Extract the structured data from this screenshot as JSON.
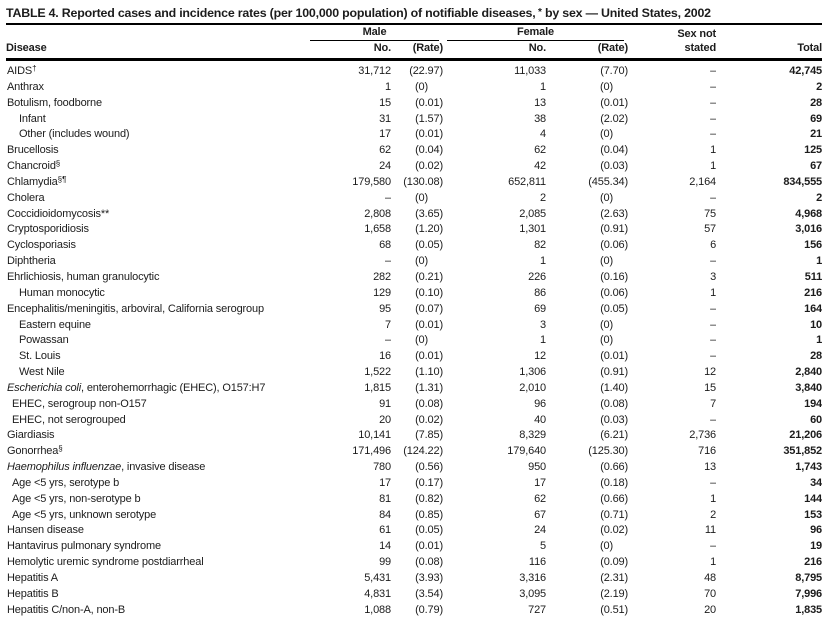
{
  "table": {
    "title": {
      "pre": "TABLE 4. Reported cases and incidence rates (per 100,000 population) of notifiable diseases,",
      "sup": " *",
      "post": " by sex — United States, 2002"
    },
    "header": {
      "disease": "Disease",
      "male": "Male",
      "female": "Female",
      "no": "No.",
      "rate": "(Rate)",
      "sex_not_line1": "Sex not",
      "sex_not_line2": "stated",
      "total": "Total"
    },
    "rows": [
      {
        "name": "AIDS",
        "sup": "†",
        "indent": 0,
        "cells": [
          "31,712",
          "(22.97)",
          "11,033",
          "(7.70)",
          "–",
          "42,745"
        ]
      },
      {
        "name": "Anthrax",
        "indent": 0,
        "cells": [
          "1",
          "(0)",
          "1",
          "(0)",
          "–",
          "2"
        ]
      },
      {
        "name": "Botulism, foodborne",
        "indent": 0,
        "cells": [
          "15",
          "(0.01)",
          "13",
          "(0.01)",
          "–",
          "28"
        ]
      },
      {
        "name": "Infant",
        "indent": 2,
        "cells": [
          "31",
          "(1.57)",
          "38",
          "(2.02)",
          "–",
          "69"
        ]
      },
      {
        "name": "Other (includes wound)",
        "indent": 2,
        "cells": [
          "17",
          "(0.01)",
          "4",
          "(0)",
          "–",
          "21"
        ]
      },
      {
        "name": "Brucellosis",
        "indent": 0,
        "cells": [
          "62",
          "(0.04)",
          "62",
          "(0.04)",
          "1",
          "125"
        ]
      },
      {
        "name": "Chancroid",
        "sup": "§",
        "indent": 0,
        "cells": [
          "24",
          "(0.02)",
          "42",
          "(0.03)",
          "1",
          "67"
        ]
      },
      {
        "name": "Chlamydia",
        "sup": "§¶",
        "indent": 0,
        "cells": [
          "179,580",
          "(130.08)",
          "652,811",
          "(455.34)",
          "2,164",
          "834,555"
        ]
      },
      {
        "name": "Cholera",
        "indent": 0,
        "cells": [
          "–",
          "(0)",
          "2",
          "(0)",
          "–",
          "2"
        ]
      },
      {
        "name": "Coccidioidomycosis**",
        "indent": 0,
        "cells": [
          "2,808",
          "(3.65)",
          "2,085",
          "(2.63)",
          "75",
          "4,968"
        ]
      },
      {
        "name": "Cryptosporidiosis",
        "indent": 0,
        "cells": [
          "1,658",
          "(1.20)",
          "1,301",
          "(0.91)",
          "57",
          "3,016"
        ]
      },
      {
        "name": "Cyclosporiasis",
        "indent": 0,
        "cells": [
          "68",
          "(0.05)",
          "82",
          "(0.06)",
          "6",
          "156"
        ]
      },
      {
        "name": "Diphtheria",
        "indent": 0,
        "cells": [
          "–",
          "(0)",
          "1",
          "(0)",
          "–",
          "1"
        ]
      },
      {
        "name": "Ehrlichiosis, human granulocytic",
        "indent": 0,
        "cells": [
          "282",
          "(0.21)",
          "226",
          "(0.16)",
          "3",
          "511"
        ]
      },
      {
        "name": "Human monocytic",
        "indent": 2,
        "cells": [
          "129",
          "(0.10)",
          "86",
          "(0.06)",
          "1",
          "216"
        ]
      },
      {
        "name": "Encephalitis/meningitis, arboviral, California serogroup",
        "indent": 0,
        "cells": [
          "95",
          "(0.07)",
          "69",
          "(0.05)",
          "–",
          "164"
        ]
      },
      {
        "name": "Eastern equine",
        "indent": 2,
        "cells": [
          "7",
          "(0.01)",
          "3",
          "(0)",
          "–",
          "10"
        ]
      },
      {
        "name": "Powassan",
        "indent": 2,
        "cells": [
          "–",
          "(0)",
          "1",
          "(0)",
          "–",
          "1"
        ]
      },
      {
        "name": "St. Louis",
        "indent": 2,
        "cells": [
          "16",
          "(0.01)",
          "12",
          "(0.01)",
          "–",
          "28"
        ]
      },
      {
        "name": "West Nile",
        "indent": 2,
        "cells": [
          "1,522",
          "(1.10)",
          "1,306",
          "(0.91)",
          "12",
          "2,840"
        ]
      },
      {
        "italic": "Escherichia coli",
        "name": ", enterohemorrhagic (EHEC), O157:H7",
        "indent": 0,
        "cells": [
          "1,815",
          "(1.31)",
          "2,010",
          "(1.40)",
          "15",
          "3,840"
        ]
      },
      {
        "name": "EHEC, serogroup non-O157",
        "indent": 1,
        "cells": [
          "91",
          "(0.08)",
          "96",
          "(0.08)",
          "7",
          "194"
        ]
      },
      {
        "name": "EHEC, not serogrouped",
        "indent": 1,
        "cells": [
          "20",
          "(0.02)",
          "40",
          "(0.03)",
          "–",
          "60"
        ]
      },
      {
        "name": "Giardiasis",
        "indent": 0,
        "cells": [
          "10,141",
          "(7.85)",
          "8,329",
          "(6.21)",
          "2,736",
          "21,206"
        ]
      },
      {
        "name": "Gonorrhea",
        "sup": "§",
        "indent": 0,
        "cells": [
          "171,496",
          "(124.22)",
          "179,640",
          "(125.30)",
          "716",
          "351,852"
        ]
      },
      {
        "italic": "Haemophilus influenzae",
        "name": ", invasive disease",
        "indent": 0,
        "cells": [
          "780",
          "(0.56)",
          "950",
          "(0.66)",
          "13",
          "1,743"
        ]
      },
      {
        "name": "Age <5 yrs, serotype b",
        "indent": 1,
        "cells": [
          "17",
          "(0.17)",
          "17",
          "(0.18)",
          "–",
          "34"
        ]
      },
      {
        "name": "Age <5 yrs, non-serotype b",
        "indent": 1,
        "cells": [
          "81",
          "(0.82)",
          "62",
          "(0.66)",
          "1",
          "144"
        ]
      },
      {
        "name": "Age <5 yrs, unknown serotype",
        "indent": 1,
        "cells": [
          "84",
          "(0.85)",
          "67",
          "(0.71)",
          "2",
          "153"
        ]
      },
      {
        "name": "Hansen disease",
        "indent": 0,
        "cells": [
          "61",
          "(0.05)",
          "24",
          "(0.02)",
          "11",
          "96"
        ]
      },
      {
        "name": "Hantavirus pulmonary syndrome",
        "indent": 0,
        "cells": [
          "14",
          "(0.01)",
          "5",
          "(0)",
          "–",
          "19"
        ]
      },
      {
        "name": "Hemolytic uremic syndrome postdiarrheal",
        "indent": 0,
        "cells": [
          "99",
          "(0.08)",
          "116",
          "(0.09)",
          "1",
          "216"
        ]
      },
      {
        "name": "Hepatitis A",
        "indent": 0,
        "cells": [
          "5,431",
          "(3.93)",
          "3,316",
          "(2.31)",
          "48",
          "8,795"
        ]
      },
      {
        "name": "Hepatitis B",
        "indent": 0,
        "cells": [
          "4,831",
          "(3.54)",
          "3,095",
          "(2.19)",
          "70",
          "7,996"
        ]
      },
      {
        "name": "Hepatitis C/non-A, non-B",
        "indent": 0,
        "cells": [
          "1,088",
          "(0.79)",
          "727",
          "(0.51)",
          "20",
          "1,835"
        ]
      }
    ]
  }
}
